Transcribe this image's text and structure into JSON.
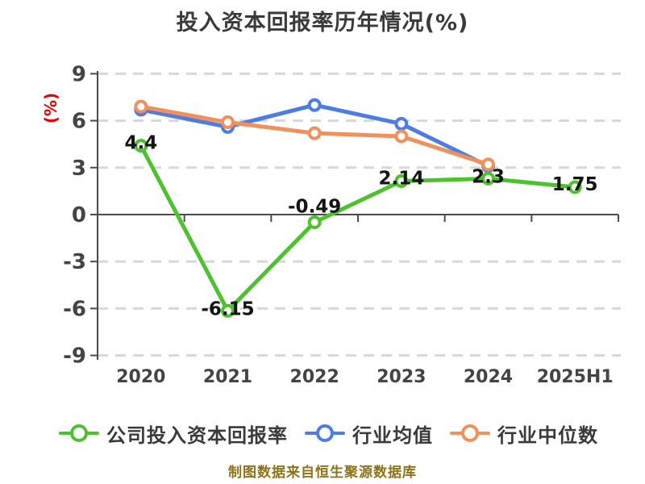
{
  "chart": {
    "title": "投入资本回报率历年情况(%)",
    "ylabel": "(%)",
    "footer": "制图数据来自恒生聚源数据库"
  },
  "chart_data": {
    "type": "line",
    "title": "投入资本回报率历年情况(%)",
    "xlabel": "",
    "ylabel": "(%)",
    "categories": [
      "2020",
      "2021",
      "2022",
      "2023",
      "2024",
      "2025H1"
    ],
    "ylim": [
      -9,
      9
    ],
    "yticks": [
      9,
      6,
      3,
      0,
      -3,
      -6,
      -9
    ],
    "grid": "horizontal-dashed",
    "legend_position": "bottom",
    "series": [
      {
        "name": "公司投入资本回报率",
        "color": "#4ec22e",
        "values": [
          4.4,
          -6.15,
          -0.49,
          2.14,
          2.3,
          1.75
        ],
        "point_labels": [
          "4.4",
          "-6.15",
          "-0.49",
          "2.14",
          "2.3",
          "1.75"
        ]
      },
      {
        "name": "行业均值",
        "color": "#4d7de3",
        "values": [
          6.7,
          5.6,
          7.0,
          5.8,
          3.1,
          null
        ],
        "point_labels": null
      },
      {
        "name": "行业中位数",
        "color": "#f0915c",
        "values": [
          6.9,
          5.9,
          5.2,
          5.0,
          3.2,
          null
        ],
        "point_labels": null
      }
    ],
    "source_note": "制图数据来自恒生聚源数据库"
  },
  "legend": {
    "items": [
      {
        "label": "公司投入资本回报率",
        "color": "#4ec22e"
      },
      {
        "label": "行业均值",
        "color": "#4d7de3"
      },
      {
        "label": "行业中位数",
        "color": "#f0915c"
      }
    ]
  },
  "colors": {
    "title_text": "#3a3a3a",
    "axis_line": "#4a4a4a",
    "axis_text": "#444444",
    "gridline": "#d8d8d8",
    "data_label": "#141414",
    "y_unit_red": "#e60000",
    "footer_gold": "#8c7319"
  }
}
